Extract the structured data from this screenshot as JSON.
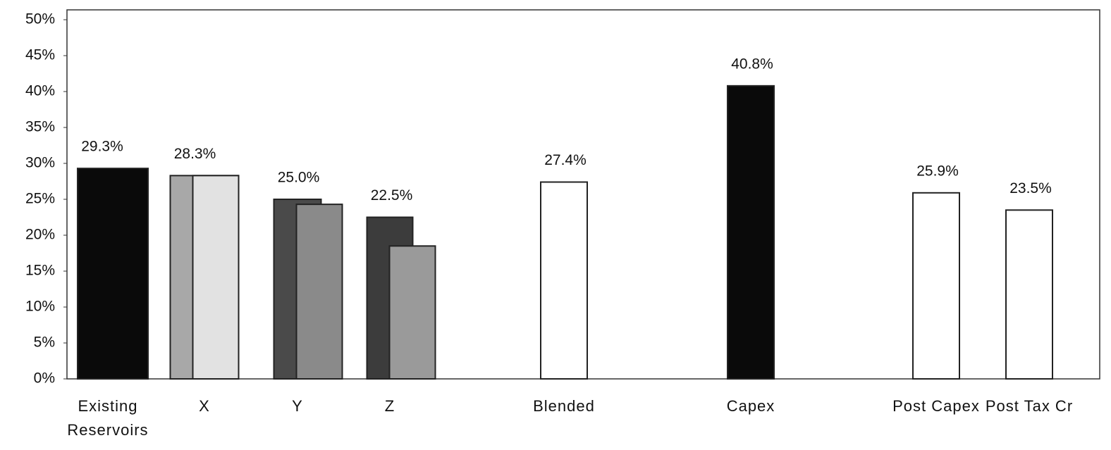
{
  "chart_data": {
    "type": "bar",
    "categories": [
      "Existing Reservoirs",
      "X",
      "Y",
      "Z",
      "Blended",
      "Capex",
      "Post Capex",
      "Post Tax Cr"
    ],
    "values": [
      29.3,
      28.3,
      25.0,
      22.5,
      27.4,
      40.8,
      25.9,
      23.5
    ],
    "value_labels": [
      "29.3%",
      "28.3%",
      "25.0%",
      "22.5%",
      "27.4%",
      "40.8%",
      "25.9%",
      "23.5%"
    ],
    "colors": [
      "#0a0a0a",
      "#a8a8a8",
      "#4a4a4a",
      "#3c3c3c",
      "#ffffff",
      "#0a0a0a",
      "#ffffff",
      "#ffffff"
    ],
    "overlay_values": [
      null,
      28.3,
      24.3,
      18.5,
      null,
      null,
      null,
      null
    ],
    "overlay_colors": [
      null,
      "#e2e2e2",
      "#8a8a8a",
      "#9a9a9a",
      null,
      null,
      null,
      null
    ],
    "ylim": [
      0,
      50
    ],
    "yticks": [
      {
        "value": 0,
        "label": "0%"
      },
      {
        "value": 5,
        "label": "5%"
      },
      {
        "value": 10,
        "label": "10%"
      },
      {
        "value": 15,
        "label": "15%"
      },
      {
        "value": 20,
        "label": "20%"
      },
      {
        "value": 25,
        "label": "25%"
      },
      {
        "value": 30,
        "label": "30%"
      },
      {
        "value": 35,
        "label": "35%"
      },
      {
        "value": 40,
        "label": "40%"
      },
      {
        "value": 45,
        "label": "45%"
      },
      {
        "value": 50,
        "label": "50%"
      }
    ]
  }
}
